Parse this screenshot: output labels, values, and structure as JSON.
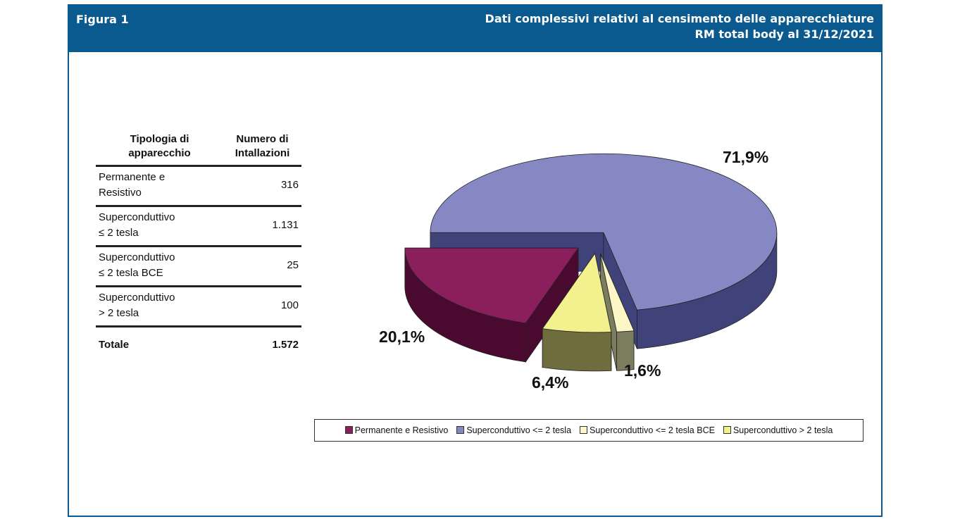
{
  "header": {
    "figure": "Figura 1",
    "title_line1": "Dati complessivi relativi al censimento delle apparecchiature",
    "title_line2": "RM total body al 31/12/2021"
  },
  "table": {
    "headers": [
      "Tipologia di apparecchio",
      "Numero di Intallazioni"
    ],
    "rows": [
      {
        "line1": "Permanente e",
        "line2": "Resistivo",
        "value": "316"
      },
      {
        "line1": "Superconduttivo",
        "line2": "≤ 2 tesla",
        "value": "1.131"
      },
      {
        "line1": "Superconduttivo",
        "line2": "≤ 2 tesla BCE",
        "value": "25"
      },
      {
        "line1": "Superconduttivo",
        "line2": "> 2 tesla",
        "value": "100"
      }
    ],
    "total": {
      "label": "Totale",
      "value": "1.572"
    }
  },
  "chart_data": {
    "type": "pie",
    "style": "3d-exploded",
    "categories": [
      "Superconduttivo <= 2 tesla",
      "Superconduttivo <= 2 tesla BCE",
      "Superconduttivo > 2 tesla",
      "Permanente e Resistivo"
    ],
    "values": [
      71.9,
      1.6,
      6.4,
      20.1
    ],
    "data_labels": [
      "71,9%",
      "1,6%",
      "6,4%",
      "20,1%"
    ],
    "colors": [
      "#8688c4",
      "#fbf7c6",
      "#f3f08e",
      "#8b1f5e"
    ],
    "side_colors": [
      "#40437a",
      "#7c7c5e",
      "#6f6d3e",
      "#4a0a30"
    ],
    "legend": {
      "position": "bottom",
      "entries": [
        {
          "label": "Permanente e Resistivo",
          "color": "#8b1f5e"
        },
        {
          "label": "Superconduttivo <= 2 tesla",
          "color": "#8688c4"
        },
        {
          "label": "Superconduttivo <= 2 tesla BCE",
          "color": "#fbf7c6"
        },
        {
          "label": "Superconduttivo > 2 tesla",
          "color": "#f3f08e"
        }
      ]
    }
  }
}
